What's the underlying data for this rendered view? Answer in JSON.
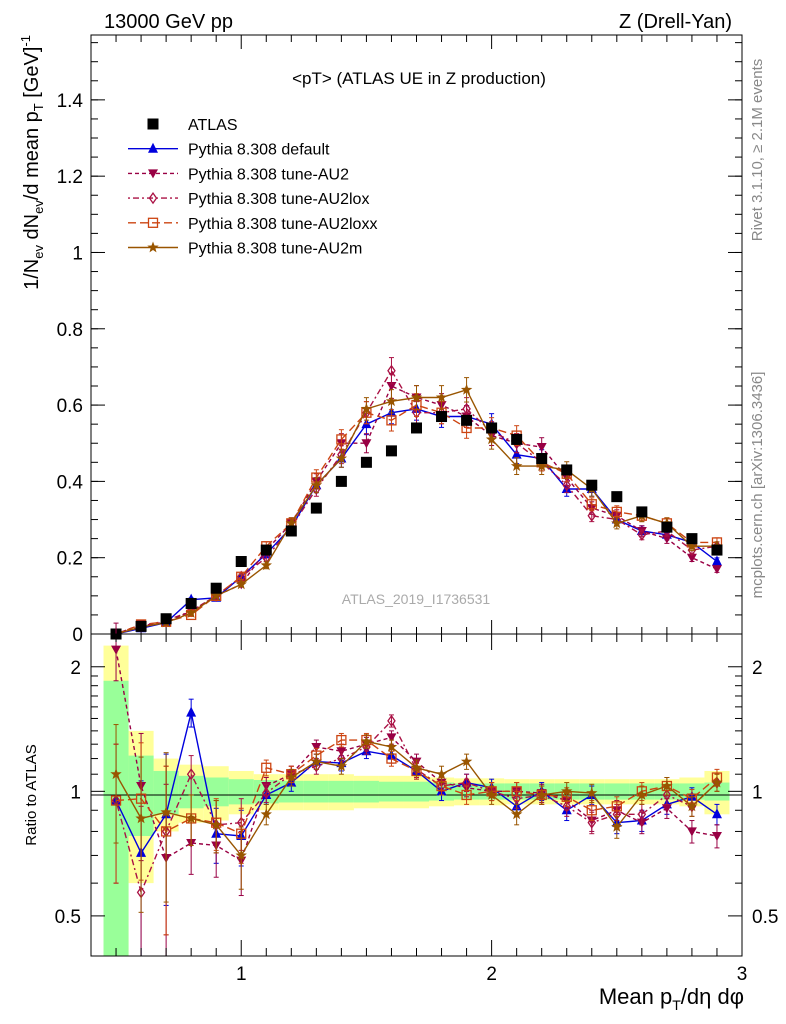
{
  "header": {
    "left": "13000 GeV pp",
    "right": "Z (Drell-Yan)"
  },
  "plot_title": "<pT> (ATLAS UE in Z production)",
  "side_labels": {
    "rivet": "Rivet 3.1.10, ≥ 2.1M events",
    "mcplots": "mcplots.cern.ch [arXiv:1306.3436]"
  },
  "watermark": "ATLAS_2019_I1736531",
  "chart_data": [
    {
      "type": "scatter",
      "panel": "main",
      "ylabel": "1/N_ev dN_ev/d mean p_T [GeV]^-1",
      "xlim": [
        0.4,
        3.0
      ],
      "ylim": [
        0,
        1.57
      ],
      "yticks": [
        "0",
        "0.2",
        "0.4",
        "0.6",
        "0.8",
        "1",
        "1.2",
        "1.4"
      ],
      "x": [
        0.5,
        0.6,
        0.7,
        0.8,
        0.9,
        1.0,
        1.1,
        1.2,
        1.3,
        1.4,
        1.5,
        1.6,
        1.7,
        1.8,
        1.9,
        2.0,
        2.1,
        2.2,
        2.3,
        2.4,
        2.5,
        2.6,
        2.7,
        2.8,
        2.9
      ],
      "legend_position": "top-left",
      "series": [
        {
          "name": "ATLAS",
          "color": "#000000",
          "marker": "square",
          "dash": "none",
          "values": [
            0.0,
            0.02,
            0.04,
            0.08,
            0.12,
            0.19,
            0.22,
            0.27,
            0.33,
            0.4,
            0.45,
            0.48,
            0.54,
            0.57,
            0.56,
            0.54,
            0.51,
            0.46,
            0.43,
            0.39,
            0.36,
            0.32,
            0.28,
            0.25,
            0.22
          ]
        },
        {
          "name": "Pythia 8.308 default",
          "color": "#0000dd",
          "marker": "triangle-up",
          "dash": "none",
          "values": [
            0.0,
            0.015,
            0.03,
            0.09,
            0.095,
            0.15,
            0.21,
            0.28,
            0.39,
            0.46,
            0.55,
            0.58,
            0.59,
            0.57,
            0.57,
            0.55,
            0.47,
            0.46,
            0.38,
            0.38,
            0.3,
            0.27,
            0.26,
            0.24,
            0.19
          ]
        },
        {
          "name": "Pythia 8.308 tune-AU2",
          "color": "#990044",
          "marker": "triangle-down",
          "dash": "4,3",
          "values": [
            0.0,
            0.025,
            0.03,
            0.06,
            0.1,
            0.13,
            0.22,
            0.29,
            0.4,
            0.5,
            0.5,
            0.65,
            0.62,
            0.6,
            0.57,
            0.52,
            0.5,
            0.49,
            0.41,
            0.33,
            0.31,
            0.27,
            0.25,
            0.2,
            0.17
          ]
        },
        {
          "name": "Pythia 8.308 tune-AU2lox",
          "color": "#aa1144",
          "marker": "diamond-open",
          "dash": "2,3,6,3",
          "values": [
            0.0,
            0.02,
            0.035,
            0.06,
            0.1,
            0.15,
            0.2,
            0.28,
            0.38,
            0.47,
            0.58,
            0.69,
            0.58,
            0.58,
            0.59,
            0.53,
            0.5,
            0.45,
            0.39,
            0.31,
            0.3,
            0.26,
            0.27,
            0.22,
            0.23
          ]
        },
        {
          "name": "Pythia 8.308 tune-AU2loxx",
          "color": "#cc4411",
          "marker": "square-open",
          "dash": "8,4",
          "values": [
            0.0,
            0.025,
            0.032,
            0.05,
            0.1,
            0.15,
            0.23,
            0.29,
            0.41,
            0.51,
            0.58,
            0.56,
            0.6,
            0.58,
            0.54,
            0.54,
            0.52,
            0.45,
            0.42,
            0.34,
            0.32,
            0.31,
            0.29,
            0.24,
            0.24
          ]
        },
        {
          "name": "Pythia 8.308 tune-AU2m",
          "color": "#995500",
          "marker": "star",
          "dash": "none",
          "values": [
            0.0,
            0.018,
            0.03,
            0.055,
            0.1,
            0.13,
            0.18,
            0.29,
            0.39,
            0.46,
            0.59,
            0.61,
            0.62,
            0.62,
            0.64,
            0.51,
            0.44,
            0.44,
            0.43,
            0.38,
            0.29,
            0.31,
            0.29,
            0.23,
            0.23
          ]
        }
      ]
    },
    {
      "type": "line",
      "panel": "ratio",
      "ylabel": "Ratio to ATLAS",
      "xlabel": "Mean p_T/dη dφ",
      "xlim": [
        0.4,
        3.0
      ],
      "ylim": [
        0.4,
        2.4
      ],
      "log_y": true,
      "yticks": [
        "0.5",
        "1",
        "2"
      ],
      "xticks": [
        "1",
        "2",
        "3"
      ],
      "x": [
        0.5,
        0.6,
        0.7,
        0.8,
        0.9,
        1.0,
        1.1,
        1.2,
        1.3,
        1.4,
        1.5,
        1.6,
        1.7,
        1.8,
        1.9,
        2.0,
        2.1,
        2.2,
        2.3,
        2.4,
        2.5,
        2.6,
        2.7,
        2.8,
        2.9
      ],
      "band_green_halfwidth": [
        0.85,
        0.22,
        0.12,
        0.09,
        0.08,
        0.07,
        0.065,
        0.06,
        0.06,
        0.06,
        0.06,
        0.055,
        0.055,
        0.05,
        0.045,
        0.045,
        0.045,
        0.045,
        0.045,
        0.045,
        0.045,
        0.045,
        0.045,
        0.045,
        0.05
      ],
      "band_yellow_halfwidth": [
        1.25,
        0.4,
        0.2,
        0.16,
        0.15,
        0.12,
        0.1,
        0.1,
        0.1,
        0.1,
        0.09,
        0.09,
        0.09,
        0.08,
        0.075,
        0.075,
        0.07,
        0.07,
        0.07,
        0.07,
        0.07,
        0.07,
        0.07,
        0.08,
        0.12
      ],
      "series": [
        {
          "name": "Pythia 8.308 default",
          "color": "#0000dd",
          "marker": "triangle-up",
          "dash": "none",
          "values": [
            0.95,
            0.71,
            0.88,
            1.55,
            0.79,
            0.78,
            0.98,
            1.05,
            1.18,
            1.17,
            1.25,
            1.22,
            1.12,
            1.0,
            1.05,
            1.02,
            0.92,
            1.0,
            0.9,
            0.98,
            0.84,
            0.85,
            0.93,
            0.97,
            0.88
          ]
        },
        {
          "name": "Pythia 8.308 tune-AU2",
          "color": "#990044",
          "marker": "triangle-down",
          "dash": "4,3",
          "values": [
            2.2,
            1.03,
            0.69,
            0.75,
            0.74,
            0.68,
            1.03,
            1.1,
            1.28,
            1.25,
            1.3,
            1.35,
            1.18,
            1.05,
            1.02,
            1.0,
            1.0,
            0.99,
            0.95,
            0.85,
            0.9,
            0.84,
            0.91,
            0.8,
            0.78
          ]
        },
        {
          "name": "Pythia 8.308 tune-AU2lox",
          "color": "#aa1144",
          "marker": "diamond-open",
          "dash": "2,3,6,3",
          "values": [
            0.95,
            0.57,
            0.8,
            1.1,
            0.83,
            0.84,
            0.99,
            1.1,
            1.15,
            1.2,
            1.28,
            1.48,
            1.13,
            1.03,
            1.05,
            1.0,
            0.96,
            0.98,
            0.92,
            0.84,
            0.88,
            0.88,
            0.98,
            0.92,
            1.05
          ]
        },
        {
          "name": "Pythia 8.308 tune-AU2loxx",
          "color": "#cc4411",
          "marker": "square-open",
          "dash": "8,4",
          "values": [
            0.95,
            0.96,
            0.8,
            0.86,
            0.84,
            0.79,
            1.14,
            1.1,
            1.22,
            1.33,
            1.33,
            1.2,
            1.12,
            1.03,
            0.98,
            1.0,
            1.0,
            0.98,
            0.97,
            0.9,
            0.92,
            1.0,
            1.03,
            0.96,
            1.08
          ]
        },
        {
          "name": "Pythia 8.308 tune-AU2m",
          "color": "#995500",
          "marker": "star",
          "dash": "none",
          "values": [
            1.1,
            0.86,
            0.89,
            0.86,
            0.83,
            0.7,
            0.88,
            1.08,
            1.18,
            1.15,
            1.32,
            1.28,
            1.14,
            1.1,
            1.18,
            0.98,
            0.88,
            0.98,
            1.0,
            0.99,
            0.82,
            0.98,
            1.03,
            0.92,
            1.05
          ]
        }
      ]
    }
  ]
}
